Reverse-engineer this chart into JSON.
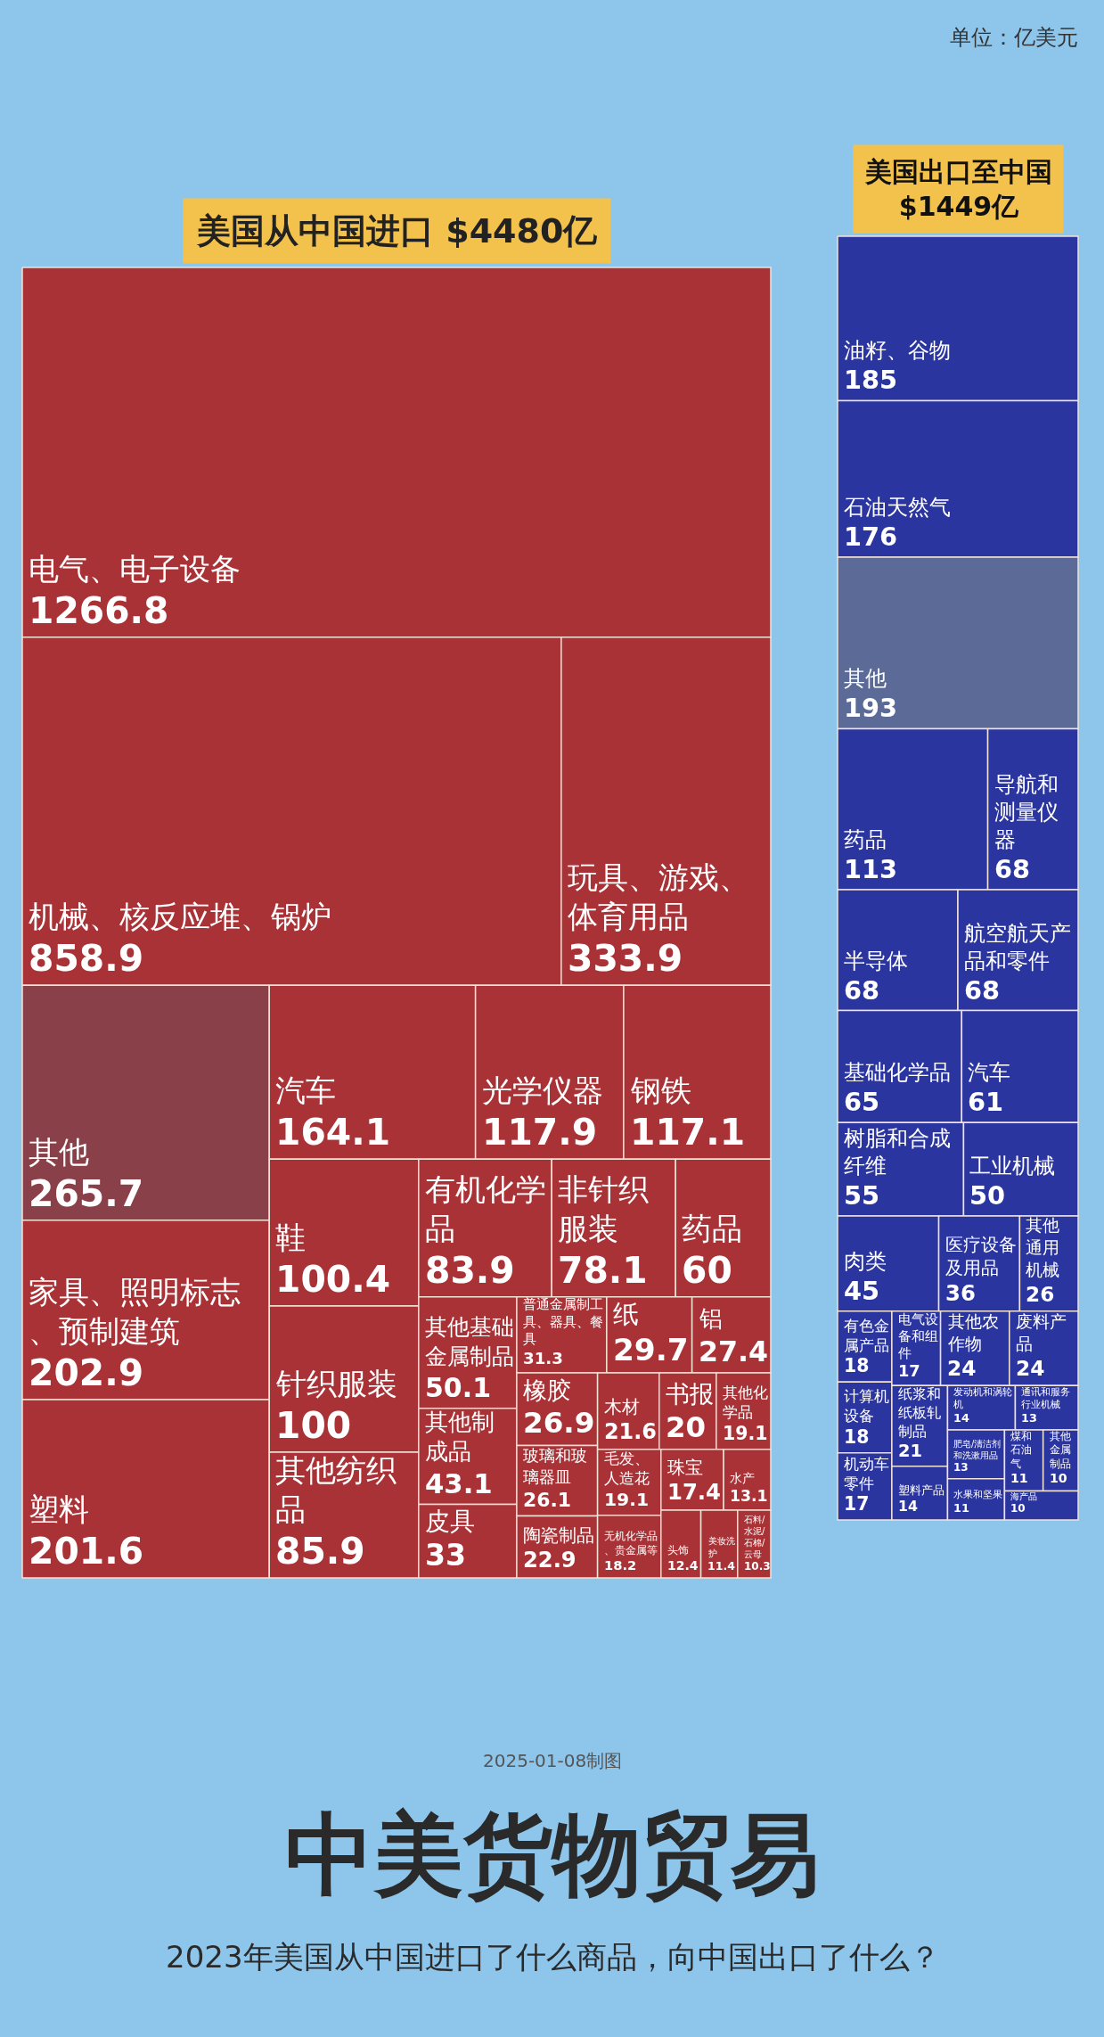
{
  "chart_data": [
    {
      "type": "other",
      "title": "中美货物贸易",
      "subtitle": "2023年美国从中国进口了什么商品，向中国出口了什么？",
      "annotations": [
        "美国从中国进口 $4480亿",
        "单位：亿美元",
        "2025-01-08制图"
      ],
      "categories": [
        "电气、电子设备",
        "机械、核反应堆、锅炉",
        "玩具、游戏、体育用品",
        "其他",
        "家具、照明标志、预制建筑",
        "塑料",
        "汽车",
        "光学仪器",
        "钢铁",
        "鞋",
        "针织服装",
        "其他纺织品",
        "有机化学品",
        "非针织服装",
        "药品",
        "其他基础金属制品",
        "其他制成品",
        "皮具",
        "普通金属制工具、器具、餐具",
        "纸",
        "铝",
        "橡胶",
        "玻璃和玻璃器皿",
        "陶瓷制品",
        "木材",
        "书报",
        "其他化学品",
        "毛发、人造花",
        "无机化学品、贵金属等",
        "珠宝",
        "水产",
        "头饰",
        "美妆洗护",
        "石料/水泥/石棉/云母"
      ],
      "values": [
        1266.8,
        858.9,
        333.9,
        265.7,
        202.9,
        201.6,
        164.1,
        117.9,
        117.1,
        100.4,
        100,
        85.9,
        83.9,
        78.1,
        60,
        50.1,
        43.1,
        33,
        31.3,
        29.7,
        27.4,
        26.9,
        26.1,
        22.9,
        21.6,
        20,
        19.1,
        19.1,
        18.2,
        17.4,
        13.1,
        12.4,
        11.4,
        10.3
      ],
      "colors": [
        "#a93237",
        "#a93237",
        "#a93237",
        "#8a4048",
        "#a93237",
        "#a93237",
        "#a93237",
        "#a93237",
        "#a93237",
        "#a93237",
        "#a93237",
        "#a93237",
        "#a93237",
        "#a93237",
        "#a93237",
        "#a93237",
        "#a93237",
        "#a93237",
        "#a93237",
        "#a93237",
        "#a93237",
        "#a93237",
        "#a93237",
        "#a93237",
        "#a93237",
        "#a93237",
        "#a93237",
        "#a93237",
        "#a93237",
        "#a93237",
        "#a93237",
        "#a93237",
        "#a93237",
        "#a93237"
      ],
      "data_labels": true
    },
    {
      "type": "other",
      "title": "美国出口至中国 $1449亿",
      "categories": [
        "油籽、谷物",
        "石油天然气",
        "其他",
        "药品",
        "导航和测量仪器",
        "半导体",
        "航空航天产品和零件",
        "基础化学品",
        "汽车",
        "树脂和合成纤维",
        "工业机械",
        "肉类",
        "医疗设备及用品",
        "其他通用机械",
        "有色金属产品",
        "计算机设备",
        "机动车零件",
        "电气设备和组件",
        "其他农作物",
        "废料产品",
        "纸浆和纸板轧制品",
        "塑料产品",
        "发动机和涡轮机",
        "通讯和服务行业机械",
        "肥皂/清洁剂和洗漱用品",
        "水果和坚果",
        "煤和石油气",
        "其他金属制品",
        "海产品"
      ],
      "values": [
        185,
        176,
        193,
        113,
        68,
        68,
        68,
        65,
        61,
        55,
        50,
        45,
        36,
        26,
        18,
        18,
        17,
        17,
        24,
        24,
        21,
        14,
        14,
        13,
        13,
        11,
        11,
        10,
        10
      ],
      "colors": [
        "#2b35a0",
        "#2b35a0",
        "#5b6a96",
        "#2b35a0",
        "#2b35a0",
        "#2b35a0",
        "#2b35a0",
        "#2b35a0",
        "#2b35a0",
        "#2b35a0",
        "#2b35a0",
        "#2b35a0",
        "#2b35a0",
        "#2b35a0",
        "#2b35a0",
        "#2b35a0",
        "#2b35a0",
        "#2b35a0",
        "#2b35a0",
        "#2b35a0",
        "#2b35a0",
        "#2b35a0",
        "#2b35a0",
        "#2b35a0",
        "#2b35a0",
        "#2b35a0",
        "#2b35a0",
        "#2b35a0",
        "#2b35a0"
      ],
      "data_labels": true
    }
  ]
}
